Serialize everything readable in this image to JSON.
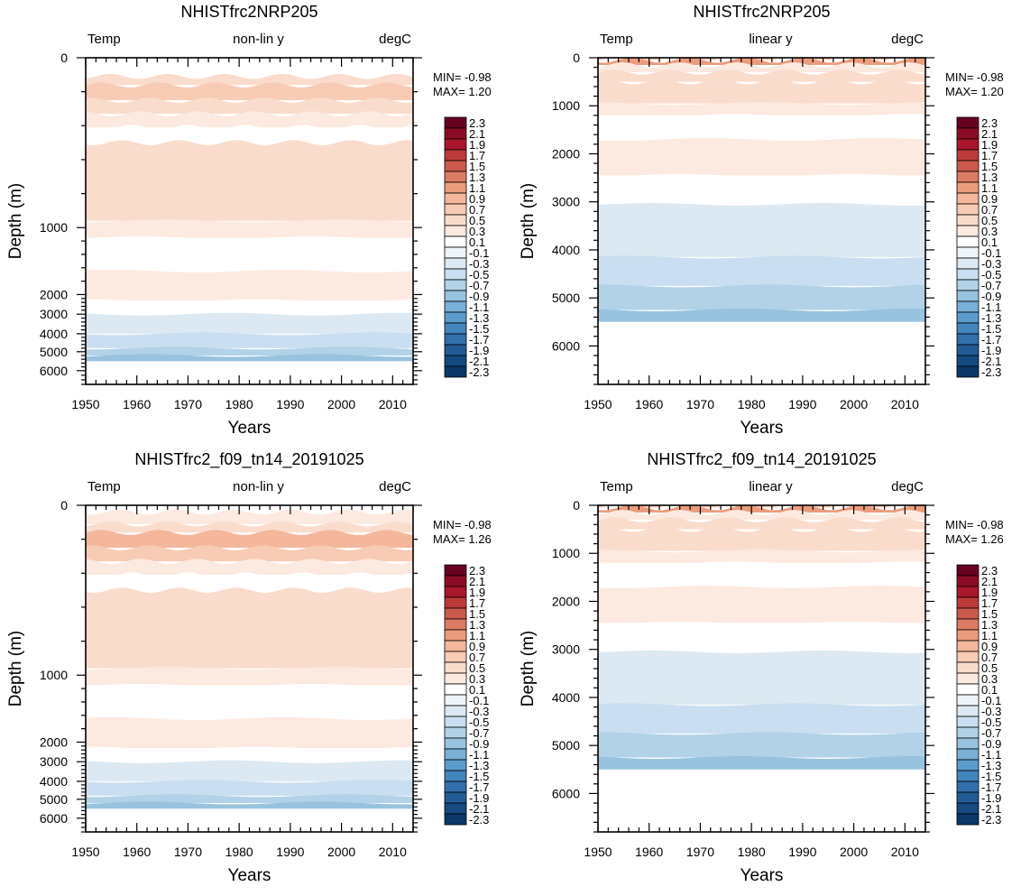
{
  "figure": {
    "domain": "ocean temperature anomaly Hovmoller panels"
  },
  "colorbar_levels": [
    "2.3",
    "2.1",
    "1.9",
    "1.7",
    "1.5",
    "1.3",
    "1.1",
    "0.9",
    "0.7",
    "0.5",
    "0.3",
    "0.1",
    "-0.1",
    "-0.3",
    "-0.5",
    "-0.7",
    "-0.9",
    "-1.1",
    "-1.3",
    "-1.5",
    "-1.7",
    "-1.9",
    "-2.1",
    "-2.3"
  ],
  "colorbar_colors": [
    "#67001f",
    "#8b0b25",
    "#a8172b",
    "#bd3a3a",
    "#cc5a4c",
    "#dc7b63",
    "#eb9c7c",
    "#f4b79b",
    "#f8cbb4",
    "#fadccc",
    "#fce9df",
    "#ffffff",
    "#eef4f8",
    "#dce9f2",
    "#c9def0",
    "#b1d2e7",
    "#97c3df",
    "#78b0d6",
    "#5a9bcc",
    "#4385bd",
    "#3170ac",
    "#225c96",
    "#154a80",
    "#0b3868"
  ],
  "chart_data": [
    {
      "type": "heatmap",
      "title": "NHISTfrc2NRP205",
      "left_label": "Temp",
      "center_label": "non-lin y",
      "right_label": "degC",
      "xlabel": "Years",
      "ylabel": "Depth (m)",
      "xlim": [
        1950,
        2014
      ],
      "ylim": [
        0,
        6600
      ],
      "yscale": "non-linear",
      "xticks": [
        "1950",
        "1960",
        "1970",
        "1980",
        "1990",
        "2000",
        "2010"
      ],
      "yticks": [
        "0",
        "1000",
        "2000",
        "3000",
        "4000",
        "5000",
        "6000"
      ],
      "min_label": "MIN= -0.98",
      "max_label": "MAX=  1.20",
      "depth_bands": [
        {
          "top": 0,
          "bottom": 40,
          "value": 0.1
        },
        {
          "top": 40,
          "bottom": 110,
          "value": 0.1
        },
        {
          "top": 110,
          "bottom": 160,
          "value": 0.5
        },
        {
          "top": 160,
          "bottom": 250,
          "value": 0.8
        },
        {
          "top": 250,
          "bottom": 330,
          "value": 0.6
        },
        {
          "top": 330,
          "bottom": 410,
          "value": 0.3
        },
        {
          "top": 410,
          "bottom": 500,
          "value": 0.1
        },
        {
          "top": 500,
          "bottom": 960,
          "value": 0.5
        },
        {
          "top": 960,
          "bottom": 1150,
          "value": 0.3
        },
        {
          "top": 1150,
          "bottom": 1650,
          "value": 0.1
        },
        {
          "top": 1650,
          "bottom": 2300,
          "value": 0.3
        },
        {
          "top": 2300,
          "bottom": 3000,
          "value": 0.1
        },
        {
          "top": 3000,
          "bottom": 4000,
          "value": -0.3
        },
        {
          "top": 4000,
          "bottom": 4800,
          "value": -0.5
        },
        {
          "top": 4800,
          "bottom": 5200,
          "value": -0.7
        },
        {
          "top": 5200,
          "bottom": 5500,
          "value": -0.9
        }
      ]
    },
    {
      "type": "heatmap",
      "title": "NHISTfrc2NRP205",
      "left_label": "Temp",
      "center_label": "linear y",
      "right_label": "degC",
      "xlabel": "Years",
      "ylabel": "Depth (m)",
      "xlim": [
        1950,
        2014
      ],
      "ylim": [
        0,
        6800
      ],
      "yscale": "linear",
      "xticks": [
        "1950",
        "1960",
        "1970",
        "1980",
        "1990",
        "2000",
        "2010"
      ],
      "yticks": [
        "0",
        "1000",
        "2000",
        "3000",
        "4000",
        "5000",
        "6000"
      ],
      "min_label": "MIN= -0.98",
      "max_label": "MAX=  1.20",
      "depth_bands": [
        {
          "top": 0,
          "bottom": 50,
          "value": 0.8
        },
        {
          "top": 50,
          "bottom": 150,
          "value": 1.1
        },
        {
          "top": 150,
          "bottom": 300,
          "value": 0.3
        },
        {
          "top": 300,
          "bottom": 500,
          "value": 0.5
        },
        {
          "top": 500,
          "bottom": 950,
          "value": 0.6
        },
        {
          "top": 950,
          "bottom": 1200,
          "value": 0.3
        },
        {
          "top": 1200,
          "bottom": 1700,
          "value": 0.1
        },
        {
          "top": 1700,
          "bottom": 2450,
          "value": 0.3
        },
        {
          "top": 2450,
          "bottom": 3050,
          "value": 0.1
        },
        {
          "top": 3050,
          "bottom": 4150,
          "value": -0.3
        },
        {
          "top": 4150,
          "bottom": 4750,
          "value": -0.5
        },
        {
          "top": 4750,
          "bottom": 5250,
          "value": -0.7
        },
        {
          "top": 5250,
          "bottom": 5500,
          "value": -0.9
        }
      ]
    },
    {
      "type": "heatmap",
      "title": "NHISTfrc2_f09_tn14_20191025",
      "left_label": "Temp",
      "center_label": "non-lin y",
      "right_label": "degC",
      "xlabel": "Years",
      "ylabel": "Depth (m)",
      "xlim": [
        1950,
        2014
      ],
      "ylim": [
        0,
        6600
      ],
      "yscale": "non-linear",
      "xticks": [
        "1950",
        "1960",
        "1970",
        "1980",
        "1990",
        "2000",
        "2010"
      ],
      "yticks": [
        "0",
        "1000",
        "2000",
        "3000",
        "4000",
        "5000",
        "6000"
      ],
      "min_label": "MIN= -0.98",
      "max_label": "MAX=  1.26",
      "depth_bands": [
        {
          "top": 0,
          "bottom": 40,
          "value": 0.1
        },
        {
          "top": 40,
          "bottom": 110,
          "value": 0.3
        },
        {
          "top": 110,
          "bottom": 160,
          "value": 0.6
        },
        {
          "top": 160,
          "bottom": 250,
          "value": 0.9
        },
        {
          "top": 250,
          "bottom": 330,
          "value": 0.7
        },
        {
          "top": 330,
          "bottom": 410,
          "value": 0.3
        },
        {
          "top": 410,
          "bottom": 500,
          "value": 0.1
        },
        {
          "top": 500,
          "bottom": 960,
          "value": 0.5
        },
        {
          "top": 960,
          "bottom": 1150,
          "value": 0.3
        },
        {
          "top": 1150,
          "bottom": 1650,
          "value": 0.1
        },
        {
          "top": 1650,
          "bottom": 2300,
          "value": 0.3
        },
        {
          "top": 2300,
          "bottom": 3000,
          "value": 0.1
        },
        {
          "top": 3000,
          "bottom": 4000,
          "value": -0.3
        },
        {
          "top": 4000,
          "bottom": 4800,
          "value": -0.5
        },
        {
          "top": 4800,
          "bottom": 5200,
          "value": -0.7
        },
        {
          "top": 5200,
          "bottom": 5500,
          "value": -0.9
        }
      ]
    },
    {
      "type": "heatmap",
      "title": "NHISTfrc2_f09_tn14_20191025",
      "left_label": "Temp",
      "center_label": "linear y",
      "right_label": "degC",
      "xlabel": "Years",
      "ylabel": "Depth (m)",
      "xlim": [
        1950,
        2014
      ],
      "ylim": [
        0,
        6800
      ],
      "yscale": "linear",
      "xticks": [
        "1950",
        "1960",
        "1970",
        "1980",
        "1990",
        "2000",
        "2010"
      ],
      "yticks": [
        "0",
        "1000",
        "2000",
        "3000",
        "4000",
        "5000",
        "6000"
      ],
      "min_label": "MIN= -0.98",
      "max_label": "MAX=  1.26",
      "depth_bands": [
        {
          "top": 0,
          "bottom": 50,
          "value": 0.8
        },
        {
          "top": 50,
          "bottom": 150,
          "value": 1.1
        },
        {
          "top": 150,
          "bottom": 300,
          "value": 0.3
        },
        {
          "top": 300,
          "bottom": 500,
          "value": 0.5
        },
        {
          "top": 500,
          "bottom": 950,
          "value": 0.6
        },
        {
          "top": 950,
          "bottom": 1200,
          "value": 0.3
        },
        {
          "top": 1200,
          "bottom": 1700,
          "value": 0.1
        },
        {
          "top": 1700,
          "bottom": 2450,
          "value": 0.3
        },
        {
          "top": 2450,
          "bottom": 3050,
          "value": 0.1
        },
        {
          "top": 3050,
          "bottom": 4150,
          "value": -0.3
        },
        {
          "top": 4150,
          "bottom": 4750,
          "value": -0.5
        },
        {
          "top": 4750,
          "bottom": 5250,
          "value": -0.7
        },
        {
          "top": 5250,
          "bottom": 5500,
          "value": -0.9
        }
      ]
    }
  ]
}
